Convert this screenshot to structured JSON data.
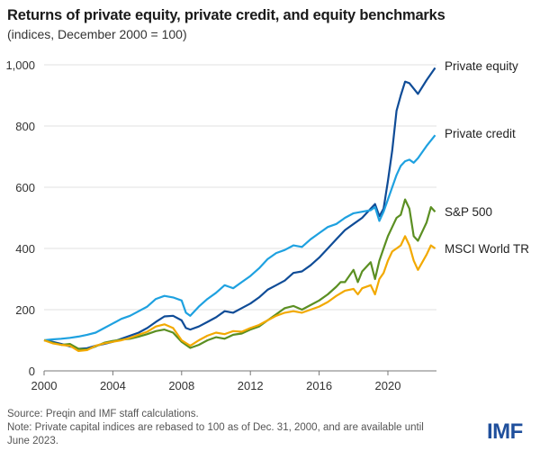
{
  "title": "Returns of private equity, private credit, and equity benchmarks",
  "subtitle": "(indices, December 2000 = 100)",
  "footer": {
    "source": "Source: Preqin and IMF staff calculations.",
    "note": "Note: Private capital indices are rebased to 100 as of Dec. 31, 2000, and are available until June 2023."
  },
  "logo": "IMF",
  "chart_data": {
    "type": "line",
    "title": "Returns of private equity, private credit, and equity benchmarks",
    "subtitle": "(indices, December 2000 = 100)",
    "xlabel": "",
    "ylabel": "",
    "xlim": [
      2000,
      2023.5
    ],
    "ylim": [
      0,
      1000
    ],
    "grid": true,
    "legend": "direct labels at line ends (right)",
    "x_ticks": [
      2000,
      2004,
      2008,
      2012,
      2016,
      2020
    ],
    "x_tick_labels": [
      "2000",
      "2004",
      "2008",
      "2012",
      "2016",
      "2020"
    ],
    "y_ticks": [
      0,
      200,
      400,
      600,
      800,
      1000
    ],
    "y_tick_labels": [
      "0",
      "200",
      "400",
      "600",
      "800",
      "1,000"
    ],
    "series": [
      {
        "name": "Private equity",
        "color": "#0f4c97",
        "x": [
          2000,
          2000.5,
          2001,
          2001.5,
          2002,
          2002.5,
          2003,
          2003.5,
          2004,
          2004.5,
          2005,
          2005.5,
          2006,
          2006.5,
          2007,
          2007.5,
          2008,
          2008.25,
          2008.5,
          2009,
          2009.5,
          2010,
          2010.5,
          2011,
          2011.5,
          2012,
          2012.5,
          2013,
          2013.5,
          2014,
          2014.5,
          2015,
          2015.5,
          2016,
          2016.5,
          2017,
          2017.5,
          2018,
          2018.5,
          2019,
          2019.25,
          2019.5,
          2019.75,
          2020,
          2020.25,
          2020.5,
          2020.75,
          2021,
          2021.25,
          2021.75,
          2022.25,
          2022.75
        ],
        "values": [
          100,
          95,
          88,
          80,
          72,
          74,
          82,
          88,
          95,
          105,
          115,
          125,
          140,
          160,
          178,
          180,
          165,
          140,
          135,
          145,
          160,
          175,
          195,
          190,
          205,
          220,
          240,
          265,
          280,
          295,
          320,
          325,
          345,
          370,
          400,
          430,
          460,
          480,
          500,
          530,
          545,
          505,
          530,
          620,
          720,
          850,
          900,
          945,
          940,
          905,
          950,
          990
        ]
      },
      {
        "name": "Private credit",
        "color": "#1ea1e0",
        "x": [
          2000,
          2000.5,
          2001,
          2001.5,
          2002,
          2002.5,
          2003,
          2003.5,
          2004,
          2004.5,
          2005,
          2005.5,
          2006,
          2006.5,
          2007,
          2007.5,
          2008,
          2008.25,
          2008.5,
          2009,
          2009.5,
          2010,
          2010.5,
          2011,
          2011.5,
          2012,
          2012.5,
          2013,
          2013.5,
          2014,
          2014.5,
          2015,
          2015.5,
          2016,
          2016.5,
          2017,
          2017.5,
          2018,
          2018.5,
          2019,
          2019.25,
          2019.5,
          2019.75,
          2020,
          2020.25,
          2020.5,
          2020.75,
          2021,
          2021.25,
          2021.5,
          2021.75,
          2022.25,
          2022.75
        ],
        "values": [
          100,
          103,
          105,
          108,
          112,
          118,
          125,
          140,
          155,
          170,
          180,
          195,
          210,
          235,
          245,
          240,
          230,
          190,
          180,
          210,
          235,
          255,
          280,
          270,
          290,
          310,
          335,
          365,
          385,
          395,
          410,
          405,
          430,
          450,
          470,
          480,
          500,
          515,
          520,
          525,
          535,
          490,
          520,
          560,
          600,
          640,
          670,
          685,
          690,
          680,
          695,
          735,
          770
        ]
      },
      {
        "name": "S&P 500",
        "color": "#5b8f22",
        "x": [
          2000,
          2000.5,
          2001,
          2001.5,
          2002,
          2002.5,
          2003,
          2003.5,
          2004,
          2004.5,
          2005,
          2005.5,
          2006,
          2006.5,
          2007,
          2007.5,
          2008,
          2008.5,
          2009,
          2009.5,
          2010,
          2010.5,
          2011,
          2011.5,
          2012,
          2012.5,
          2013,
          2013.5,
          2014,
          2014.5,
          2015,
          2015.5,
          2016,
          2016.5,
          2017,
          2017.25,
          2017.5,
          2018,
          2018.25,
          2018.5,
          2019,
          2019.25,
          2019.5,
          2019.75,
          2020,
          2020.25,
          2020.5,
          2020.75,
          2021,
          2021.25,
          2021.5,
          2021.75,
          2022.25,
          2022.5,
          2022.75
        ],
        "values": [
          100,
          92,
          85,
          88,
          72,
          70,
          80,
          92,
          98,
          102,
          105,
          112,
          120,
          130,
          135,
          125,
          95,
          75,
          85,
          100,
          110,
          105,
          118,
          122,
          135,
          145,
          165,
          185,
          205,
          212,
          200,
          215,
          230,
          250,
          275,
          290,
          290,
          330,
          290,
          325,
          355,
          300,
          360,
          400,
          440,
          470,
          500,
          510,
          560,
          530,
          440,
          425,
          485,
          535,
          520
        ]
      },
      {
        "name": "MSCI World TR",
        "color": "#f2a900",
        "x": [
          2000,
          2000.5,
          2001,
          2001.5,
          2002,
          2002.5,
          2003,
          2003.5,
          2004,
          2004.5,
          2005,
          2005.5,
          2006,
          2006.5,
          2007,
          2007.5,
          2008,
          2008.5,
          2009,
          2009.5,
          2010,
          2010.5,
          2011,
          2011.5,
          2012,
          2012.5,
          2013,
          2013.5,
          2014,
          2014.5,
          2015,
          2015.5,
          2016,
          2016.5,
          2017,
          2017.5,
          2018,
          2018.25,
          2018.5,
          2019,
          2019.25,
          2019.5,
          2019.75,
          2020,
          2020.25,
          2020.5,
          2020.75,
          2021,
          2021.25,
          2021.5,
          2021.75,
          2022.25,
          2022.5,
          2022.75
        ],
        "values": [
          100,
          90,
          85,
          82,
          65,
          68,
          82,
          90,
          95,
          100,
          108,
          118,
          128,
          145,
          152,
          140,
          100,
          82,
          100,
          115,
          125,
          120,
          130,
          128,
          140,
          150,
          165,
          180,
          190,
          195,
          190,
          200,
          210,
          225,
          245,
          262,
          268,
          250,
          270,
          280,
          250,
          300,
          320,
          360,
          390,
          400,
          410,
          440,
          410,
          360,
          330,
          380,
          410,
          400
        ]
      }
    ]
  }
}
